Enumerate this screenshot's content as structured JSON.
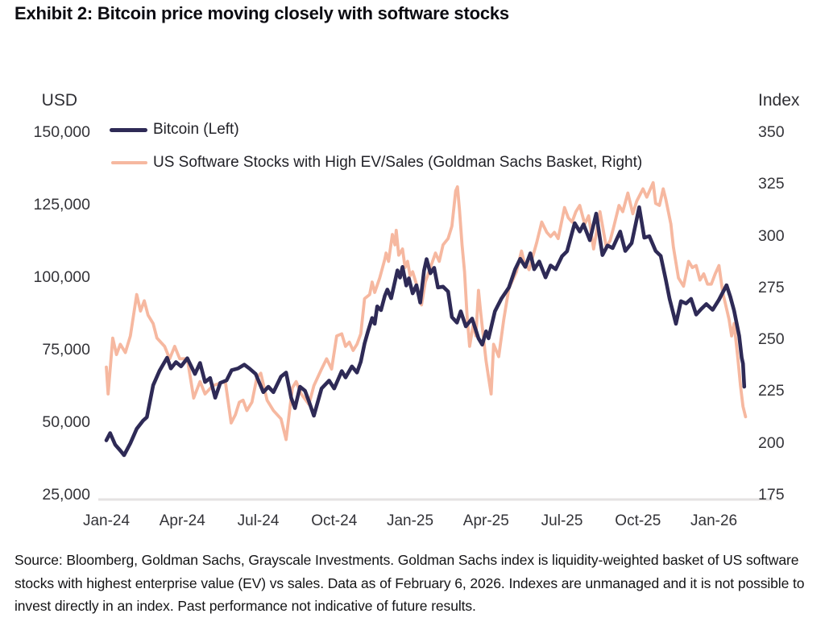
{
  "title": "Exhibit 2: Bitcoin price moving closely with software stocks",
  "footer": {
    "source_text": "Source: Bloomberg, Goldman Sachs, Grayscale Investments. Goldman Sachs index is liquidity-weighted basket of US software stocks with highest enterprise value (EV) vs sales. Data as of February 6, 2026. Indexes are unmanaged and it is not possible to invest directly in an index. Past performance not indicative of future results."
  },
  "chart_data": {
    "type": "line",
    "legend_position": "top-left",
    "grid": false,
    "left_axis": {
      "title": "USD",
      "min": 25000,
      "max": 150000,
      "tick_values": [
        150000,
        125000,
        100000,
        75000,
        50000,
        25000
      ],
      "tick_labels": [
        "150,000",
        "125,000",
        "100,000",
        "75,000",
        "50,000",
        "25,000"
      ]
    },
    "right_axis": {
      "title": "Index",
      "min": 175,
      "max": 350,
      "tick_values": [
        350,
        325,
        300,
        275,
        250,
        225,
        200,
        175
      ],
      "tick_labels": [
        "350",
        "325",
        "300",
        "275",
        "250",
        "225",
        "200",
        "175"
      ]
    },
    "x_axis": {
      "unit": "months_since_jan_2024",
      "range": [
        0,
        25.3
      ],
      "tick_months": [
        0,
        3,
        6,
        9,
        12,
        15,
        18,
        21,
        24
      ],
      "tick_labels": [
        "Jan-24",
        "Apr-24",
        "Jul-24",
        "Oct-24",
        "Jan-25",
        "Apr-25",
        "Jul-25",
        "Oct-25",
        "Jan-26"
      ]
    },
    "series": [
      {
        "slug": "bitcoin",
        "name": "Bitcoin (Left)",
        "axis": "left",
        "color": "#2e2a56",
        "stroke_width": 4.6,
        "points": [
          [
            0,
            44000
          ],
          [
            0.15,
            46500
          ],
          [
            0.35,
            42500
          ],
          [
            0.55,
            40500
          ],
          [
            0.7,
            38900
          ],
          [
            0.95,
            43000
          ],
          [
            1.2,
            48000
          ],
          [
            1.45,
            50800
          ],
          [
            1.6,
            52000
          ],
          [
            1.85,
            63000
          ],
          [
            2.1,
            68000
          ],
          [
            2.4,
            72500
          ],
          [
            2.55,
            68800
          ],
          [
            2.75,
            71000
          ],
          [
            2.95,
            69500
          ],
          [
            3.2,
            72300
          ],
          [
            3.5,
            66900
          ],
          [
            3.7,
            70700
          ],
          [
            3.9,
            64100
          ],
          [
            4.1,
            65500
          ],
          [
            4.3,
            58700
          ],
          [
            4.5,
            63800
          ],
          [
            4.75,
            64700
          ],
          [
            4.95,
            68200
          ],
          [
            5.2,
            68800
          ],
          [
            5.45,
            70100
          ],
          [
            5.65,
            68800
          ],
          [
            5.9,
            66900
          ],
          [
            6.2,
            60600
          ],
          [
            6.4,
            62500
          ],
          [
            6.6,
            60600
          ],
          [
            6.9,
            66000
          ],
          [
            7.1,
            67400
          ],
          [
            7.3,
            58700
          ],
          [
            7.45,
            55100
          ],
          [
            7.65,
            62500
          ],
          [
            7.85,
            61100
          ],
          [
            8.0,
            57500
          ],
          [
            8.2,
            52500
          ],
          [
            8.5,
            61900
          ],
          [
            8.8,
            64600
          ],
          [
            9.0,
            61900
          ],
          [
            9.3,
            67900
          ],
          [
            9.45,
            65700
          ],
          [
            9.7,
            69500
          ],
          [
            9.9,
            67400
          ],
          [
            10.05,
            71100
          ],
          [
            10.2,
            77400
          ],
          [
            10.35,
            82000
          ],
          [
            10.5,
            86200
          ],
          [
            10.6,
            84200
          ],
          [
            10.7,
            90200
          ],
          [
            10.85,
            88900
          ],
          [
            11.0,
            93800
          ],
          [
            11.1,
            96000
          ],
          [
            11.25,
            93000
          ],
          [
            11.5,
            102600
          ],
          [
            11.6,
            100100
          ],
          [
            11.7,
            103800
          ],
          [
            11.85,
            97400
          ],
          [
            11.95,
            99900
          ],
          [
            12.1,
            94700
          ],
          [
            12.25,
            97500
          ],
          [
            12.4,
            91500
          ],
          [
            12.55,
            102500
          ],
          [
            12.65,
            106500
          ],
          [
            12.8,
            101600
          ],
          [
            12.95,
            103500
          ],
          [
            13.1,
            96700
          ],
          [
            13.3,
            97000
          ],
          [
            13.5,
            95300
          ],
          [
            13.65,
            86500
          ],
          [
            13.85,
            84600
          ],
          [
            14.0,
            88500
          ],
          [
            14.2,
            83300
          ],
          [
            14.45,
            86000
          ],
          [
            14.7,
            79200
          ],
          [
            14.85,
            77000
          ],
          [
            15.0,
            81600
          ],
          [
            15.1,
            79200
          ],
          [
            15.35,
            88500
          ],
          [
            15.6,
            92800
          ],
          [
            15.9,
            96700
          ],
          [
            16.15,
            103000
          ],
          [
            16.35,
            106600
          ],
          [
            16.55,
            103800
          ],
          [
            16.75,
            108500
          ],
          [
            16.9,
            103000
          ],
          [
            17.1,
            105700
          ],
          [
            17.35,
            100200
          ],
          [
            17.55,
            104300
          ],
          [
            17.75,
            103000
          ],
          [
            18.0,
            107500
          ],
          [
            18.2,
            109200
          ],
          [
            18.5,
            118900
          ],
          [
            18.7,
            116000
          ],
          [
            18.85,
            118500
          ],
          [
            19.1,
            113000
          ],
          [
            19.35,
            122200
          ],
          [
            19.6,
            107900
          ],
          [
            19.8,
            111200
          ],
          [
            20.0,
            110300
          ],
          [
            20.3,
            116000
          ],
          [
            20.5,
            109300
          ],
          [
            20.75,
            112000
          ],
          [
            21.05,
            124400
          ],
          [
            21.25,
            113900
          ],
          [
            21.45,
            114400
          ],
          [
            21.7,
            109300
          ],
          [
            21.9,
            107600
          ],
          [
            22.1,
            99400
          ],
          [
            22.25,
            92800
          ],
          [
            22.5,
            84200
          ],
          [
            22.7,
            92000
          ],
          [
            22.9,
            91200
          ],
          [
            23.1,
            92800
          ],
          [
            23.3,
            87400
          ],
          [
            23.5,
            89300
          ],
          [
            23.7,
            91000
          ],
          [
            23.95,
            89000
          ],
          [
            24.2,
            92500
          ],
          [
            24.5,
            97500
          ],
          [
            24.65,
            93500
          ],
          [
            24.8,
            88700
          ],
          [
            25.0,
            80000
          ],
          [
            25.1,
            72500
          ],
          [
            25.15,
            70500
          ],
          [
            25.2,
            62500
          ]
        ]
      },
      {
        "slug": "software",
        "name": "US Software Stocks with High EV/Sales (Goldman Sachs Basket, Right)",
        "axis": "right",
        "color": "#f6b8a0",
        "stroke_width": 3.8,
        "points": [
          [
            0,
            237
          ],
          [
            0.07,
            224
          ],
          [
            0.25,
            251
          ],
          [
            0.4,
            243
          ],
          [
            0.55,
            248
          ],
          [
            0.75,
            244
          ],
          [
            0.95,
            252
          ],
          [
            1.2,
            272
          ],
          [
            1.35,
            264
          ],
          [
            1.5,
            269
          ],
          [
            1.65,
            262
          ],
          [
            1.85,
            258
          ],
          [
            2.0,
            251
          ],
          [
            2.3,
            247
          ],
          [
            2.5,
            241
          ],
          [
            2.7,
            247
          ],
          [
            2.9,
            241
          ],
          [
            3.2,
            241
          ],
          [
            3.45,
            222
          ],
          [
            3.7,
            230
          ],
          [
            3.9,
            224
          ],
          [
            4.2,
            228
          ],
          [
            4.45,
            229
          ],
          [
            4.7,
            230
          ],
          [
            4.93,
            210
          ],
          [
            5.1,
            214
          ],
          [
            5.25,
            220
          ],
          [
            5.4,
            221
          ],
          [
            5.55,
            216
          ],
          [
            5.75,
            220
          ],
          [
            5.95,
            232
          ],
          [
            6.1,
            234
          ],
          [
            6.35,
            221
          ],
          [
            6.6,
            216
          ],
          [
            6.9,
            212
          ],
          [
            7.1,
            202
          ],
          [
            7.35,
            227
          ],
          [
            7.5,
            230
          ],
          [
            7.7,
            224
          ],
          [
            8.0,
            219
          ],
          [
            8.2,
            228
          ],
          [
            8.5,
            236
          ],
          [
            8.7,
            241
          ],
          [
            8.9,
            236
          ],
          [
            9.1,
            252
          ],
          [
            9.3,
            253
          ],
          [
            9.45,
            247
          ],
          [
            9.6,
            249
          ],
          [
            9.75,
            245
          ],
          [
            9.9,
            248
          ],
          [
            10.05,
            253
          ],
          [
            10.2,
            270
          ],
          [
            10.4,
            272
          ],
          [
            10.5,
            278
          ],
          [
            10.6,
            273
          ],
          [
            10.8,
            280
          ],
          [
            11.0,
            289
          ],
          [
            11.05,
            292
          ],
          [
            11.15,
            288
          ],
          [
            11.3,
            301
          ],
          [
            11.4,
            296
          ],
          [
            11.45,
            303
          ],
          [
            11.55,
            291
          ],
          [
            11.7,
            294
          ],
          [
            11.8,
            285
          ],
          [
            11.9,
            288
          ],
          [
            12.0,
            281
          ],
          [
            12.1,
            283
          ],
          [
            12.25,
            277
          ],
          [
            12.45,
            267
          ],
          [
            12.6,
            278
          ],
          [
            12.8,
            285
          ],
          [
            13.0,
            292
          ],
          [
            13.15,
            288
          ],
          [
            13.3,
            296
          ],
          [
            13.5,
            299
          ],
          [
            13.65,
            305
          ],
          [
            13.8,
            322
          ],
          [
            13.87,
            324
          ],
          [
            13.95,
            313
          ],
          [
            14.05,
            296
          ],
          [
            14.15,
            283
          ],
          [
            14.25,
            262
          ],
          [
            14.35,
            247
          ],
          [
            14.5,
            258
          ],
          [
            14.6,
            252
          ],
          [
            14.7,
            274
          ],
          [
            14.8,
            262
          ],
          [
            15.0,
            240
          ],
          [
            15.1,
            232
          ],
          [
            15.2,
            224
          ],
          [
            15.3,
            248
          ],
          [
            15.5,
            242
          ],
          [
            15.7,
            260
          ],
          [
            15.9,
            275
          ],
          [
            16.2,
            283
          ],
          [
            16.4,
            293
          ],
          [
            16.5,
            288
          ],
          [
            16.7,
            284
          ],
          [
            17.0,
            297
          ],
          [
            17.2,
            307
          ],
          [
            17.4,
            302
          ],
          [
            17.55,
            300
          ],
          [
            17.7,
            302
          ],
          [
            17.85,
            299
          ],
          [
            18.1,
            314
          ],
          [
            18.25,
            309
          ],
          [
            18.4,
            307
          ],
          [
            18.55,
            312
          ],
          [
            18.7,
            315
          ],
          [
            18.9,
            306
          ],
          [
            19.05,
            310
          ],
          [
            19.25,
            294
          ],
          [
            19.5,
            312
          ],
          [
            19.75,
            295
          ],
          [
            19.9,
            298
          ],
          [
            20.05,
            305
          ],
          [
            20.25,
            315
          ],
          [
            20.4,
            312
          ],
          [
            20.6,
            321
          ],
          [
            20.8,
            311
          ],
          [
            20.95,
            317
          ],
          [
            21.2,
            323
          ],
          [
            21.35,
            319
          ],
          [
            21.6,
            326
          ],
          [
            21.7,
            316
          ],
          [
            21.85,
            315
          ],
          [
            22.0,
            323
          ],
          [
            22.1,
            318
          ],
          [
            22.3,
            306
          ],
          [
            22.4,
            295
          ],
          [
            22.6,
            280
          ],
          [
            22.8,
            276
          ],
          [
            23.0,
            288
          ],
          [
            23.15,
            285
          ],
          [
            23.3,
            286
          ],
          [
            23.45,
            279
          ],
          [
            23.6,
            282
          ],
          [
            23.75,
            277
          ],
          [
            23.9,
            277
          ],
          [
            24.05,
            282
          ],
          [
            24.2,
            286
          ],
          [
            24.35,
            273
          ],
          [
            24.6,
            260
          ],
          [
            24.7,
            252
          ],
          [
            24.8,
            258
          ],
          [
            24.95,
            241
          ],
          [
            25.05,
            228
          ],
          [
            25.15,
            218
          ],
          [
            25.25,
            213
          ]
        ]
      }
    ],
    "axis_line_color": "#e4e2e2"
  }
}
